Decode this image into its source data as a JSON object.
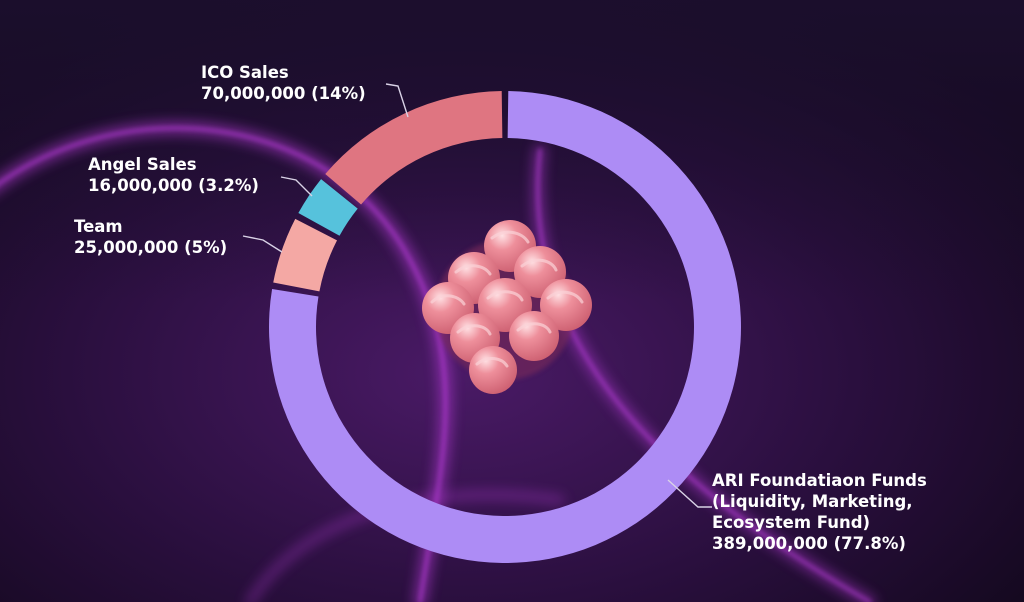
{
  "colors": {
    "background": "#14091f",
    "glow": "#b03ad0",
    "text": "#ffffff",
    "leader": "#d9d2e6",
    "logo_pink": "#e9828f",
    "logo_highlight": "#fbd3d8"
  },
  "chart_data": {
    "type": "pie",
    "donut": true,
    "title": "",
    "series": [
      {
        "name": "ARI Foundatiaon Funds (Liquidity, Marketing, Ecosystem Fund)",
        "value": 389000000,
        "percent": 77.8,
        "color": "#ad8cf5"
      },
      {
        "name": "Team",
        "value": 25000000,
        "percent": 5,
        "color": "#f4a8a4"
      },
      {
        "name": "Angel Sales",
        "value": 16000000,
        "percent": 3.2,
        "color": "#56c2dc"
      },
      {
        "name": "ICO Sales",
        "value": 70000000,
        "percent": 14,
        "color": "#df7581"
      }
    ],
    "labels": {
      "ico": {
        "name": "ICO Sales",
        "value": "70,000,000 (14%)"
      },
      "angel": {
        "name": "Angel Sales",
        "value": "16,000,000 (3.2%)"
      },
      "team": {
        "name": "Team",
        "value": "25,000,000 (5%)"
      },
      "ari": {
        "line1": "ARI Foundatiaon Funds",
        "line2": "(Liquidity, Marketing,",
        "line3": "Ecosystem Fund)",
        "value": "389,000,000 (77.8%)"
      }
    },
    "legend": "none"
  },
  "logo": {
    "icon": "ari-logo-icon"
  }
}
